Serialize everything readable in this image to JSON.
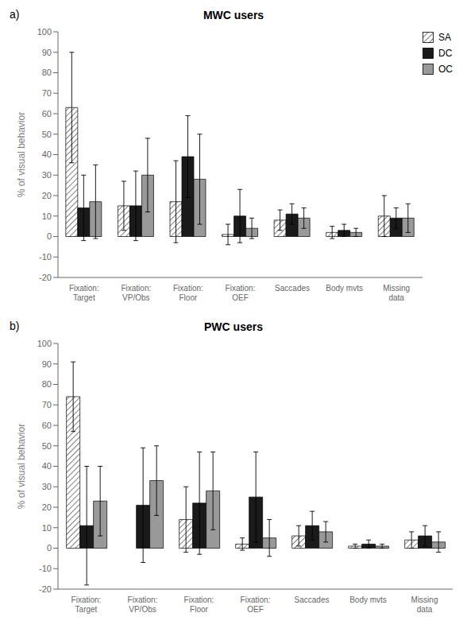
{
  "chart_data": [
    {
      "type": "bar",
      "title": "MWC users",
      "annotation": "a)",
      "categories": [
        "Fixation:\nTarget",
        "Fixation:\nVP/Obs",
        "Fixation:\nFloor",
        "Fixation:\nOEF",
        "Saccades",
        "Body mvts",
        "Missing\ndata"
      ],
      "series": [
        {
          "name": "SA",
          "color": "white",
          "values": [
            63,
            15,
            17,
            1,
            8,
            2,
            10
          ],
          "error": [
            27,
            12,
            20,
            5,
            5,
            3,
            10
          ]
        },
        {
          "name": "DC",
          "color": "#1a1a1a",
          "values": [
            14,
            15,
            39,
            10,
            11,
            3,
            9
          ],
          "error": [
            16,
            17,
            20,
            13,
            5,
            3,
            5
          ]
        },
        {
          "name": "OC",
          "color": "#999999",
          "values": [
            17,
            30,
            28,
            4,
            9,
            2,
            9
          ],
          "error": [
            18,
            18,
            22,
            5,
            5,
            2,
            7
          ]
        }
      ],
      "ylabel": "% of visual behavior",
      "ylim": [
        -20,
        100
      ],
      "yticks": [
        -20,
        -10,
        0,
        10,
        20,
        30,
        40,
        50,
        60,
        70,
        80,
        90,
        100
      ],
      "grid": false,
      "legend": "upper right"
    },
    {
      "type": "bar",
      "title": "PWC users",
      "annotation": "b)",
      "categories": [
        "Fixation:\nTarget",
        "Fixation:\nVP/Obs",
        "Fixation:\nFloor",
        "Fixation:\nOEF",
        "Saccades",
        "Body mvts",
        "Missing\ndata"
      ],
      "series": [
        {
          "name": "SA",
          "color": "white",
          "values": [
            74,
            0,
            14,
            2,
            6,
            1,
            4
          ],
          "error": [
            17,
            0,
            16,
            3,
            5,
            1,
            4
          ]
        },
        {
          "name": "DC",
          "color": "#1a1a1a",
          "values": [
            11,
            21,
            22,
            25,
            11,
            2,
            6
          ],
          "error": [
            29,
            28,
            25,
            22,
            7,
            2,
            5
          ]
        },
        {
          "name": "OC",
          "color": "#999999",
          "values": [
            23,
            33,
            28,
            5,
            8,
            1,
            3
          ],
          "error": [
            17,
            17,
            19,
            9,
            5,
            1,
            5
          ]
        }
      ],
      "ylabel": "% of visual behavior",
      "ylim": [
        -20,
        100
      ],
      "yticks": [
        -20,
        -10,
        0,
        10,
        20,
        30,
        40,
        50,
        60,
        70,
        80,
        90,
        100
      ],
      "grid": false
    }
  ]
}
